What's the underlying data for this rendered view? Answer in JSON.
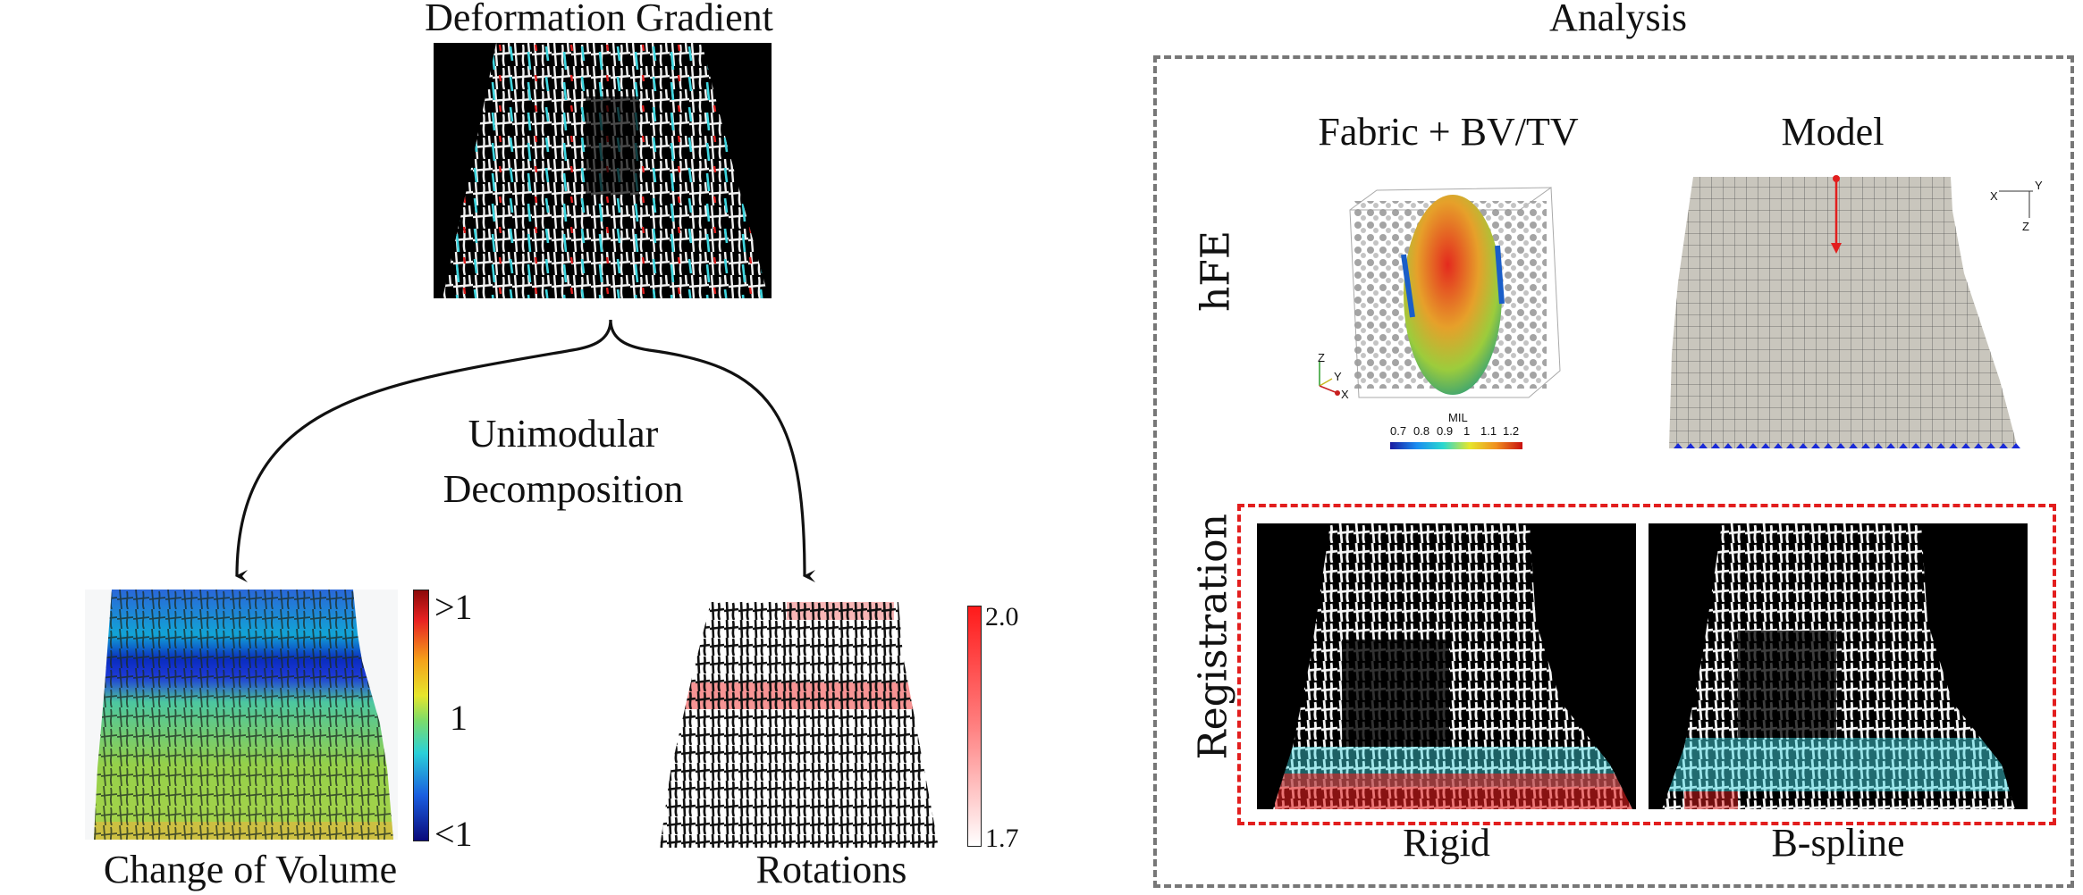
{
  "left": {
    "deformation_gradient": "Deformation Gradient",
    "decomposition_line1": "Unimodular",
    "decomposition_line2": "Decomposition",
    "change_of_volume": "Change of Volume",
    "rotations": "Rotations",
    "volume_scale": {
      "top": ">1",
      "mid": "1",
      "bottom": "<1"
    },
    "rotation_scale": {
      "top": "2.0",
      "bottom": "1.7"
    }
  },
  "right": {
    "analysis": "Analysis",
    "hfe": "hFE",
    "registration": "Registration",
    "fabric_title": "Fabric + BV/TV",
    "model_title": "Model",
    "rigid": "Rigid",
    "bspline": "B-spline",
    "mil_label": "MIL",
    "mil_ticks": [
      "0.7",
      "0.8",
      "0.9",
      "1",
      "1.1",
      "1.2"
    ],
    "axes_fabric": {
      "z": "Z",
      "y": "Y",
      "x": "X"
    },
    "axes_model": {
      "x": "X",
      "y": "Y",
      "z": "Z"
    }
  },
  "colors": {
    "red_dash": "#e21e1e",
    "grey_dash": "#777777",
    "arrow": "#111111",
    "cyan": "#3fd6e0",
    "mesh_fill": "#c9c6bd"
  }
}
